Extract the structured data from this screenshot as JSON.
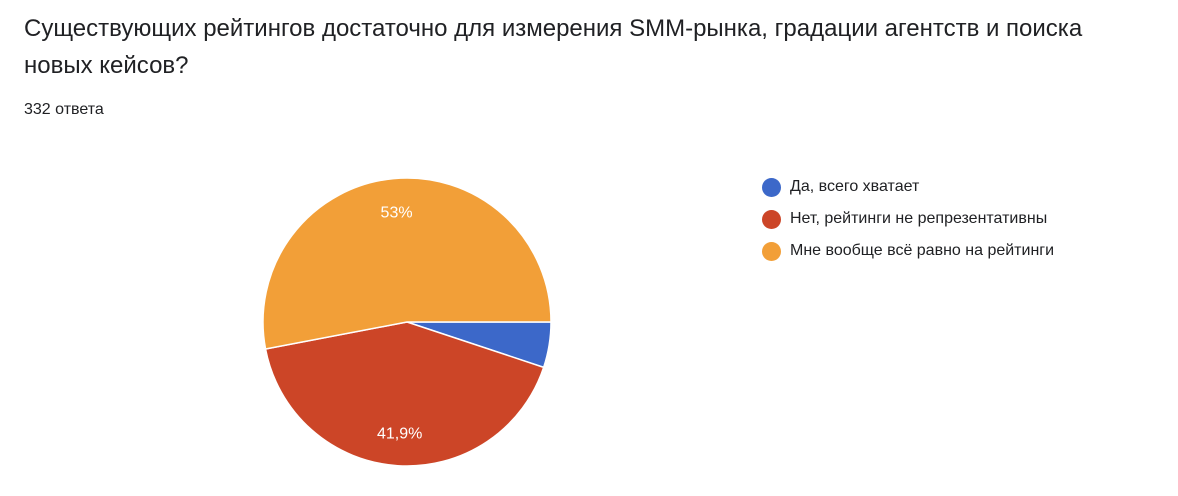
{
  "question": {
    "title": "Существующих рейтингов достаточно для измерения SMM-рынка, градации агентств и поиска новых кейсов?",
    "responses": "332 ответа"
  },
  "chart_data": {
    "type": "pie",
    "legend_position": "right",
    "categories": [
      "Да, всего хватает",
      "Нет, рейтинги не репрезентативны",
      "Мне вообще всё равно на рейтинги"
    ],
    "values": [
      5.1,
      41.9,
      53
    ],
    "labels": [
      "",
      "41,9%",
      "53%"
    ],
    "colors": [
      "#3c68c9",
      "#cc4527",
      "#f29f38"
    ]
  }
}
